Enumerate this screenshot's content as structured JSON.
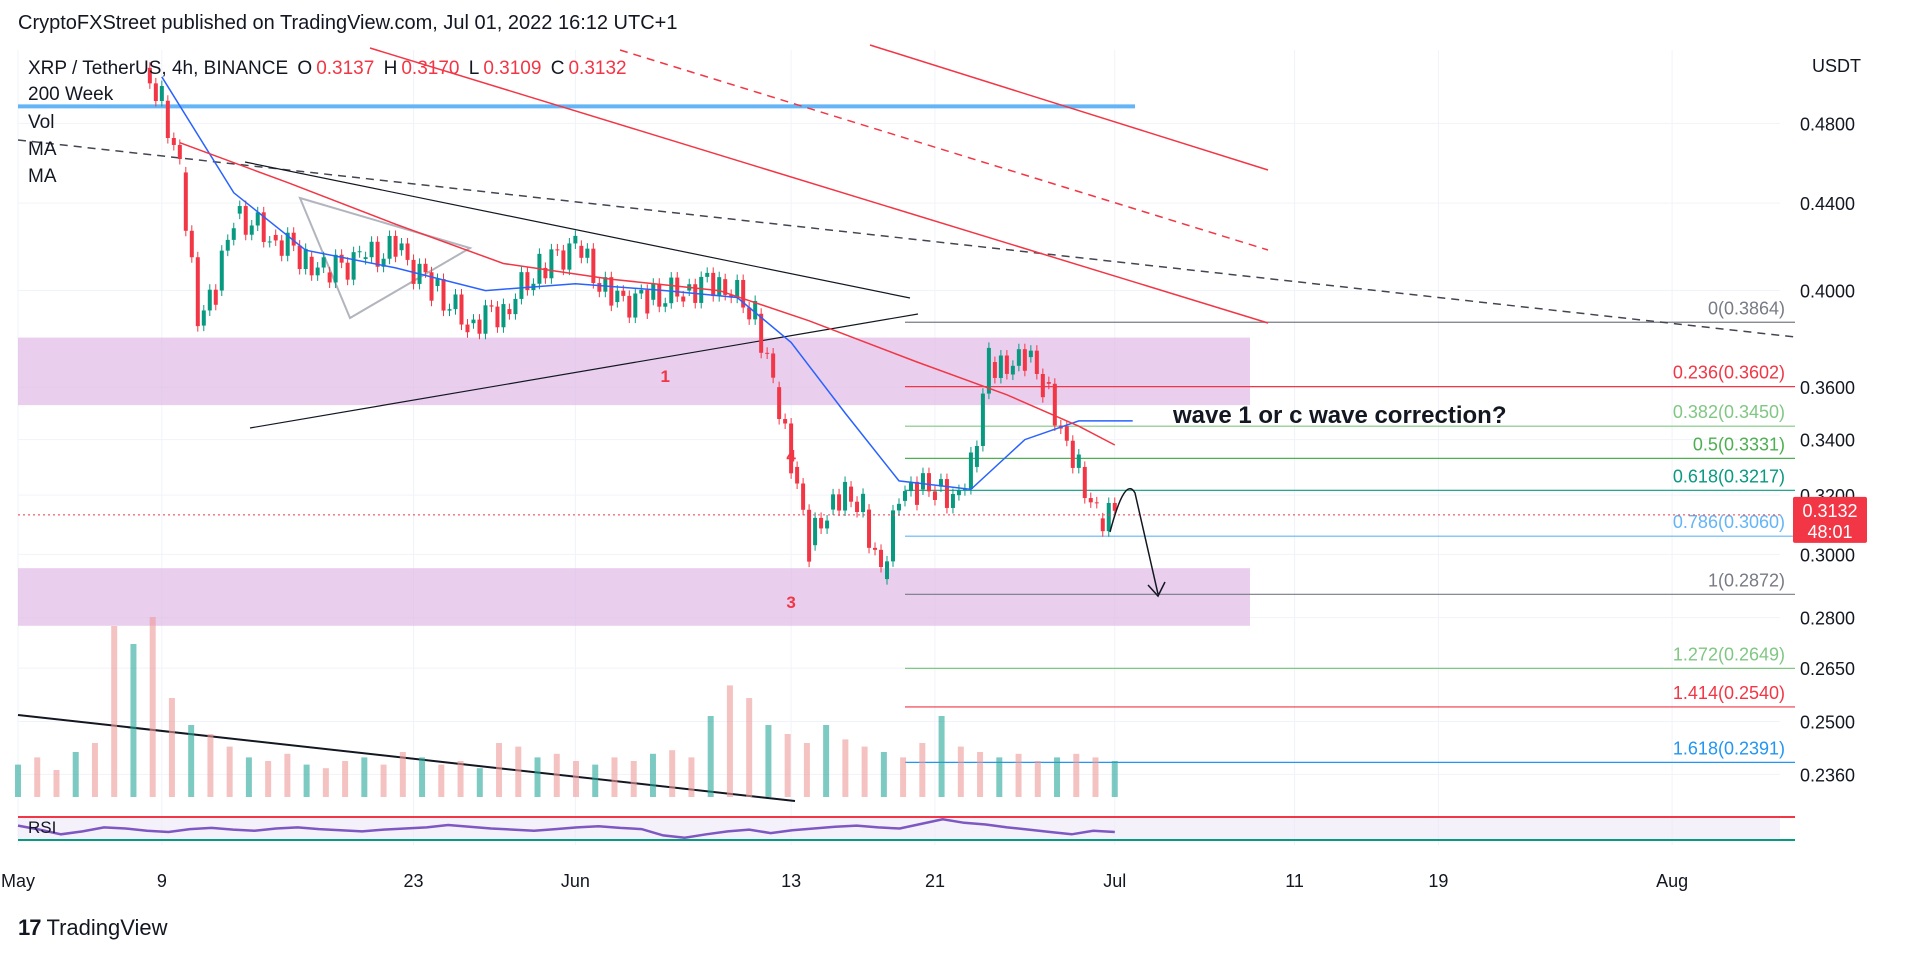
{
  "header": {
    "publisher_line": "CryptoFXStreet published on TradingView.com, Jul 01, 2022 16:12 UTC+1"
  },
  "legend": {
    "symbol": "XRP / TetherUS, 4h, BINANCE",
    "o_label": "O",
    "o_value": "0.3137",
    "h_label": "H",
    "h_value": "0.3170",
    "l_label": "L",
    "l_value": "0.3109",
    "c_label": "C",
    "c_value": "0.3132",
    "indicators": [
      "200 Week",
      "Vol",
      "MA",
      "MA"
    ],
    "rsi_label": "RSI"
  },
  "footer": {
    "logo_mark": "17",
    "brand": "TradingView"
  },
  "colors": {
    "down": "#f23645",
    "up": "#089981",
    "ma_fast": "#2962ff",
    "ma_slow": "#f23645",
    "zone": "#e1bee7",
    "week200": "#64b5f6",
    "rsi": "#7e57c2",
    "price_tag": "#f23645"
  },
  "chart_data": {
    "type": "candlestick",
    "title": "XRP / TetherUS, 4h, BINANCE",
    "y_axis_unit": "USDT",
    "y_scale": "log",
    "ylim": [
      0.232,
      0.52
    ],
    "y_ticks": [
      "0.4800",
      "0.4400",
      "0.4000",
      "0.3600",
      "0.3400",
      "0.3200",
      "0.3000",
      "0.2800",
      "0.2650",
      "0.2500",
      "0.2360"
    ],
    "x_ticks": [
      "May",
      "9",
      "23",
      "Jun",
      "13",
      "21",
      "Jul",
      "11",
      "19",
      "Aug"
    ],
    "x_range_dates": [
      "2022-05-01",
      "2022-08-07"
    ],
    "last_price": {
      "value": "0.3132",
      "countdown": "48:01"
    },
    "price_path": [
      [
        "2022-05-08",
        0.51
      ],
      [
        "2022-05-09",
        0.492
      ],
      [
        "2022-05-10",
        0.455
      ],
      [
        "2022-05-11",
        0.385
      ],
      [
        "2022-05-12",
        0.4
      ],
      [
        "2022-05-13",
        0.435
      ],
      [
        "2022-05-15",
        0.425
      ],
      [
        "2022-05-17",
        0.415
      ],
      [
        "2022-05-18",
        0.408
      ],
      [
        "2022-05-20",
        0.414
      ],
      [
        "2022-05-22",
        0.418
      ],
      [
        "2022-05-24",
        0.402
      ],
      [
        "2022-05-26",
        0.386
      ],
      [
        "2022-05-28",
        0.392
      ],
      [
        "2022-05-30",
        0.41
      ],
      [
        "2022-06-01",
        0.42
      ],
      [
        "2022-06-03",
        0.395
      ],
      [
        "2022-06-05",
        0.396
      ],
      [
        "2022-06-07",
        0.4
      ],
      [
        "2022-06-09",
        0.405
      ],
      [
        "2022-06-11",
        0.39
      ],
      [
        "2022-06-12",
        0.36
      ],
      [
        "2022-06-13",
        0.33
      ],
      [
        "2022-06-14",
        0.303
      ],
      [
        "2022-06-15",
        0.315
      ],
      [
        "2022-06-16",
        0.323
      ],
      [
        "2022-06-17",
        0.315
      ],
      [
        "2022-06-18",
        0.292
      ],
      [
        "2022-06-19",
        0.318
      ],
      [
        "2022-06-20",
        0.322
      ],
      [
        "2022-06-21",
        0.323
      ],
      [
        "2022-06-22",
        0.32
      ],
      [
        "2022-06-23",
        0.33
      ],
      [
        "2022-06-24",
        0.37
      ],
      [
        "2022-06-25",
        0.365
      ],
      [
        "2022-06-26",
        0.372
      ],
      [
        "2022-06-27",
        0.362
      ],
      [
        "2022-06-28",
        0.345
      ],
      [
        "2022-06-29",
        0.33
      ],
      [
        "2022-06-30",
        0.312
      ],
      [
        "2022-07-01",
        0.3132
      ]
    ],
    "ma_fast_path": [
      [
        "2022-05-09",
        0.505
      ],
      [
        "2022-05-13",
        0.445
      ],
      [
        "2022-05-17",
        0.418
      ],
      [
        "2022-05-22",
        0.41
      ],
      [
        "2022-05-27",
        0.4
      ],
      [
        "2022-06-01",
        0.403
      ],
      [
        "2022-06-06",
        0.4
      ],
      [
        "2022-06-10",
        0.397
      ],
      [
        "2022-06-13",
        0.378
      ],
      [
        "2022-06-16",
        0.35
      ],
      [
        "2022-06-19",
        0.325
      ],
      [
        "2022-06-23",
        0.322
      ],
      [
        "2022-06-26",
        0.34
      ],
      [
        "2022-06-29",
        0.347
      ],
      [
        "2022-07-02",
        0.347
      ]
    ],
    "ma_slow_path": [
      [
        "2022-05-10",
        0.47
      ],
      [
        "2022-05-16",
        0.45
      ],
      [
        "2022-05-22",
        0.43
      ],
      [
        "2022-05-28",
        0.412
      ],
      [
        "2022-06-03",
        0.405
      ],
      [
        "2022-06-09",
        0.4
      ],
      [
        "2022-06-14",
        0.387
      ],
      [
        "2022-06-20",
        0.37
      ],
      [
        "2022-06-25",
        0.357
      ],
      [
        "2022-06-29",
        0.345
      ],
      [
        "2022-07-01",
        0.338
      ]
    ],
    "week200_level": 0.489,
    "zones": [
      {
        "from": 0.353,
        "to": 0.38
      },
      {
        "from": 0.2775,
        "to": 0.2955
      }
    ],
    "fibonacci": [
      {
        "ratio": "0",
        "price": "0.3864",
        "color": "#787b86"
      },
      {
        "ratio": "0.236",
        "price": "0.3602",
        "color": "#f23645"
      },
      {
        "ratio": "0.382",
        "price": "0.3450",
        "color": "#81c784"
      },
      {
        "ratio": "0.5",
        "price": "0.3331",
        "color": "#4caf50"
      },
      {
        "ratio": "0.618",
        "price": "0.3217",
        "color": "#089981"
      },
      {
        "ratio": "0.786",
        "price": "0.3060",
        "color": "#64b5f6"
      },
      {
        "ratio": "1",
        "price": "0.2872",
        "color": "#787b86"
      },
      {
        "ratio": "1.272",
        "price": "0.2649",
        "color": "#81c784"
      },
      {
        "ratio": "1.414",
        "price": "0.2540",
        "color": "#f23645"
      },
      {
        "ratio": "1.618",
        "price": "0.2391",
        "color": "#2196f3"
      }
    ],
    "wave_labels": [
      {
        "text": "1",
        "date": "2022-06-06",
        "price": 0.362
      },
      {
        "text": "4",
        "date": "2022-06-13",
        "price": 0.332
      },
      {
        "text": "3",
        "date": "2022-06-13",
        "price": 0.283
      }
    ],
    "annotation": "wave 1 or c wave correction?",
    "volume": [
      0.18,
      0.22,
      0.15,
      0.25,
      0.3,
      0.95,
      0.85,
      1.0,
      0.55,
      0.4,
      0.35,
      0.28,
      0.22,
      0.2,
      0.24,
      0.18,
      0.16,
      0.2,
      0.22,
      0.18,
      0.25,
      0.22,
      0.18,
      0.2,
      0.16,
      0.3,
      0.28,
      0.22,
      0.24,
      0.2,
      0.18,
      0.22,
      0.2,
      0.24,
      0.26,
      0.22,
      0.45,
      0.62,
      0.55,
      0.4,
      0.35,
      0.3,
      0.4,
      0.32,
      0.28,
      0.25,
      0.22,
      0.3,
      0.45,
      0.28,
      0.25,
      0.22,
      0.24,
      0.2,
      0.22,
      0.24,
      0.22,
      0.2
    ],
    "rsi": [
      55,
      48,
      40,
      45,
      52,
      50,
      46,
      44,
      49,
      51,
      48,
      46,
      50,
      52,
      49,
      47,
      45,
      48,
      50,
      52,
      56,
      53,
      50,
      48,
      46,
      49,
      52,
      54,
      51,
      49,
      38,
      34,
      40,
      45,
      48,
      42,
      47,
      50,
      53,
      55,
      52,
      50,
      58,
      66,
      60,
      57,
      52,
      48,
      44,
      40,
      46,
      44
    ]
  }
}
